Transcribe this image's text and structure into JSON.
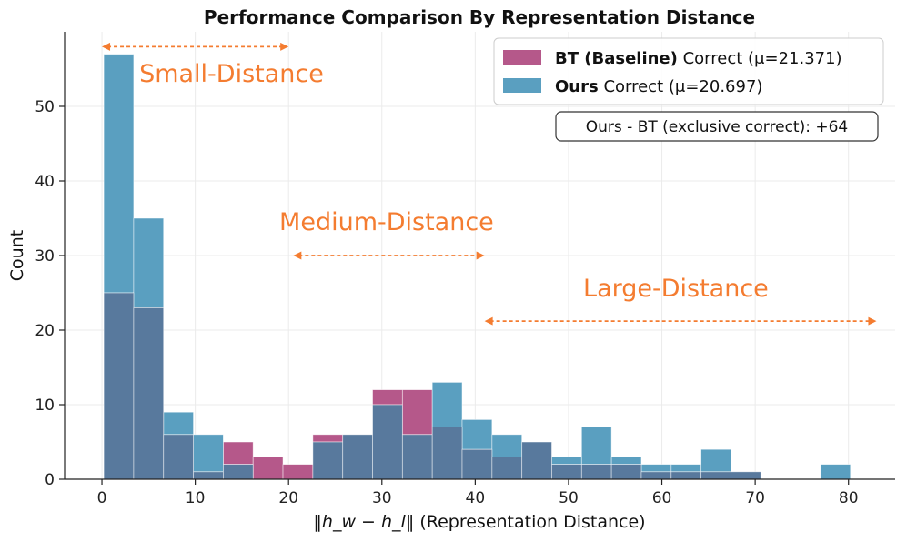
{
  "chart_data": {
    "type": "histogram",
    "title": "Performance Comparison By Representation Distance",
    "xlabel_math": "‖h_w − h_l‖",
    "xlabel_text": "(Representation Distance)",
    "ylabel": "Count",
    "xlim": [
      -4,
      85
    ],
    "ylim": [
      0,
      60
    ],
    "xticks": [
      0,
      10,
      20,
      30,
      40,
      50,
      60,
      70,
      80
    ],
    "yticks": [
      0,
      10,
      20,
      30,
      40,
      50
    ],
    "bin_edges": [
      0.2,
      3.4,
      6.6,
      9.8,
      13.0,
      16.2,
      19.4,
      22.6,
      25.8,
      29.0,
      32.2,
      35.4,
      38.6,
      41.8,
      45.0,
      48.2,
      51.4,
      54.6,
      57.8,
      61.0,
      64.2,
      67.4,
      70.6,
      73.8,
      77.0,
      80.2
    ],
    "series": [
      {
        "name": "BT (Baseline)",
        "label_bold": "BT (Baseline)",
        "label_rest": " Correct (μ=21.371)",
        "color": "#b5588a",
        "values": [
          25,
          23,
          6,
          1,
          5,
          3,
          2,
          6,
          6,
          12,
          12,
          7,
          4,
          3,
          5,
          2,
          2,
          2,
          1,
          1,
          1,
          1,
          0,
          0,
          0
        ]
      },
      {
        "name": "Ours",
        "label_bold": "Ours",
        "label_rest": " Correct (μ=20.697)",
        "color": "#5a9fc0",
        "values": [
          57,
          35,
          9,
          6,
          2,
          0,
          0,
          5,
          6,
          10,
          6,
          13,
          8,
          6,
          5,
          3,
          7,
          3,
          2,
          2,
          4,
          1,
          0,
          0,
          2
        ]
      }
    ],
    "overlap_color": "#58799d",
    "stat_box": "Ours - BT (exclusive correct): +64",
    "annotations": [
      {
        "text": "Small-Distance",
        "x_from": 0,
        "x_to": 20,
        "arrow_y": 58,
        "text_x": 4,
        "text_y": 53.3,
        "anchor": "start"
      },
      {
        "text": "Medium-Distance",
        "x_from": 20.5,
        "x_to": 41,
        "arrow_y": 30,
        "text_x": 30.5,
        "text_y": 33.4,
        "anchor": "middle"
      },
      {
        "text": "Large-Distance",
        "x_from": 41,
        "x_to": 83,
        "arrow_y": 21.2,
        "text_x": 61.5,
        "text_y": 24.5,
        "anchor": "middle"
      }
    ],
    "accent_color": "#f47c30",
    "legend_position": "top-right"
  }
}
